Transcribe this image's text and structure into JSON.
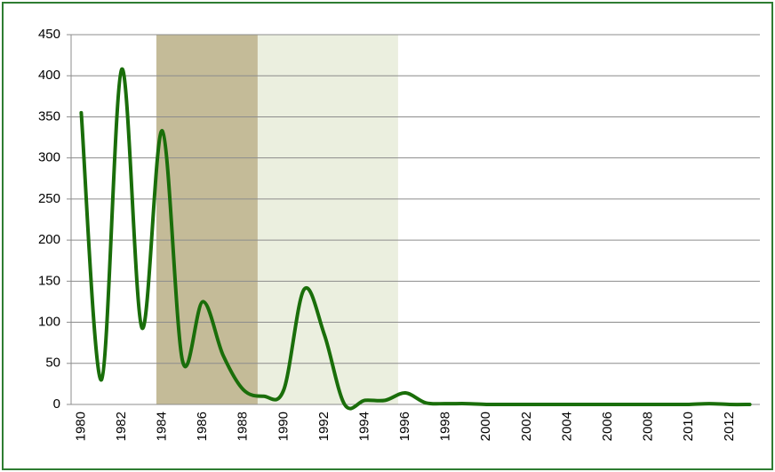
{
  "chart_data": {
    "type": "line",
    "categories": [
      "1980",
      null,
      "1982",
      null,
      "1984",
      null,
      "1986",
      null,
      "1988",
      null,
      "1990",
      null,
      "1992",
      null,
      "1994",
      null,
      "1996",
      null,
      "1998",
      null,
      "2000",
      null,
      "2002",
      null,
      "2004",
      null,
      "2006",
      null,
      "2008",
      null,
      "2010",
      null,
      "2012",
      null
    ],
    "series": [
      {
        "color": "#1a6e0a",
        "values": [
          355,
          30,
          408,
          93,
          333,
          53,
          125,
          60,
          18,
          10,
          18,
          140,
          85,
          0,
          5,
          5,
          14,
          2,
          1,
          1,
          0,
          0,
          0,
          0,
          0,
          0,
          0,
          0,
          0,
          0,
          0,
          1,
          0,
          0
        ]
      }
    ],
    "ylim": [
      0,
      450
    ],
    "yticks": [
      0,
      50,
      100,
      150,
      200,
      250,
      300,
      350,
      400,
      450
    ],
    "grid": true,
    "shaded_regions": [
      {
        "from": 1983.71,
        "to": 1988.71,
        "color": "#c4bb98"
      },
      {
        "from": 1988.71,
        "to": 1995.64,
        "color": "#ebefdf"
      }
    ]
  }
}
